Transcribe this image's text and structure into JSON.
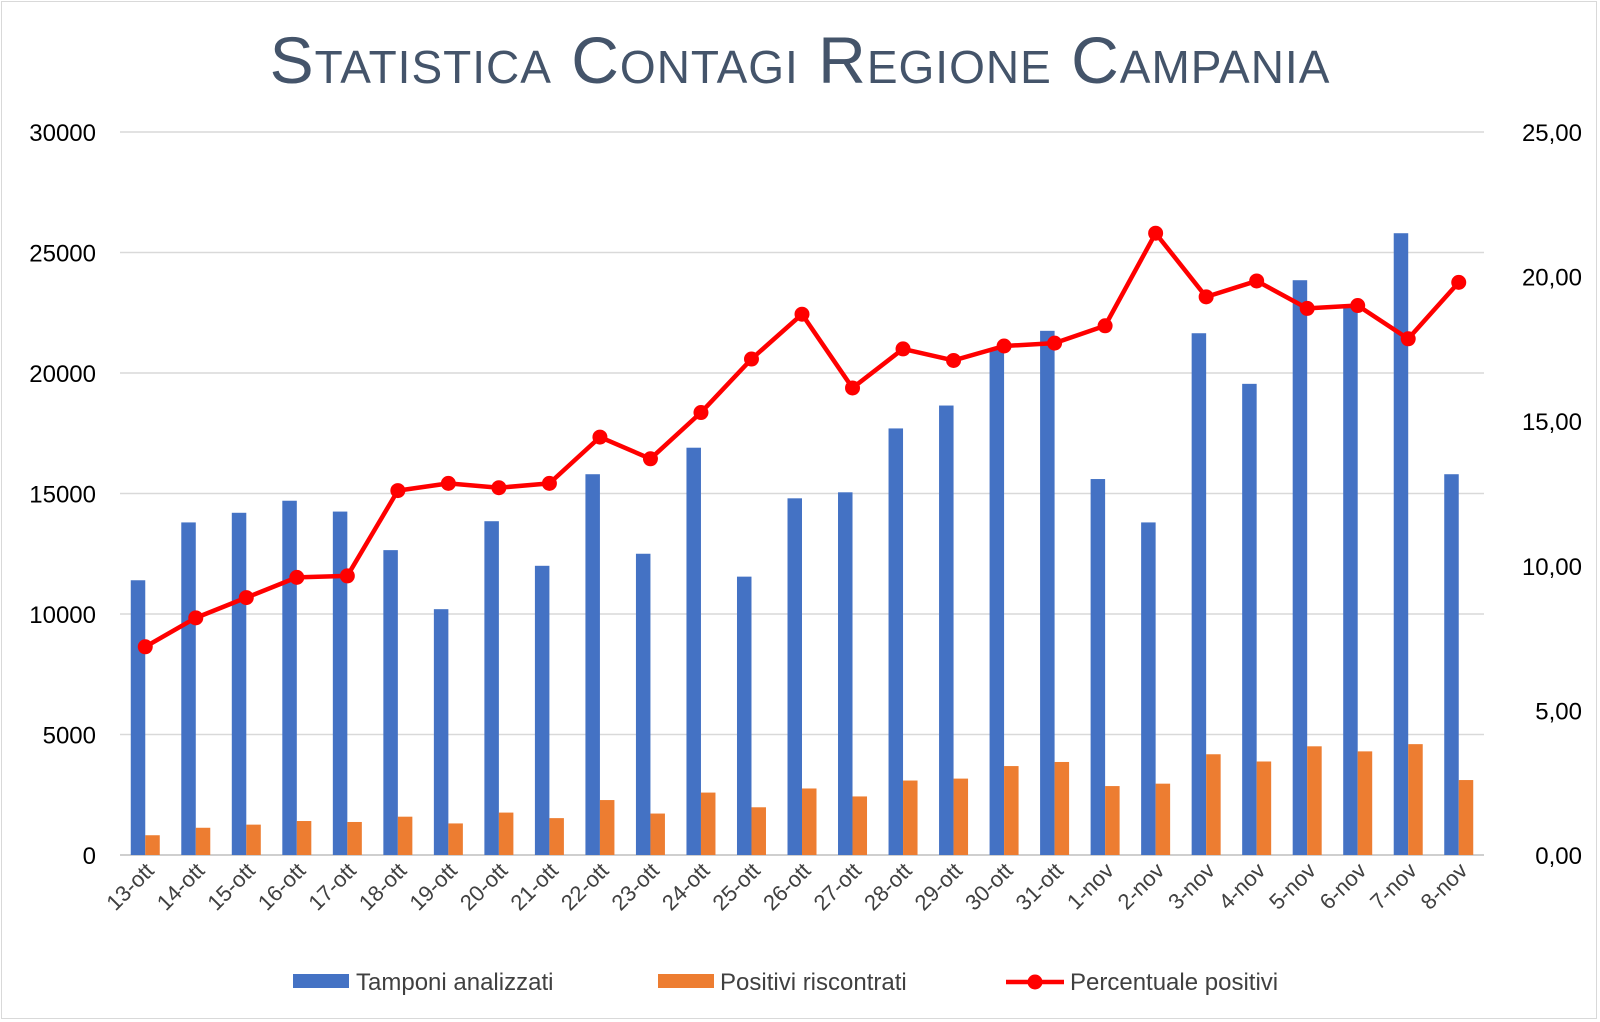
{
  "chart_data": {
    "type": "bar",
    "title": "Statistica Contagi Regione Campania",
    "categories": [
      "13-ott",
      "14-ott",
      "15-ott",
      "16-ott",
      "17-ott",
      "18-ott",
      "19-ott",
      "20-ott",
      "21-ott",
      "22-ott",
      "23-ott",
      "24-ott",
      "25-ott",
      "26-ott",
      "27-ott",
      "28-ott",
      "29-ott",
      "30-ott",
      "31-ott",
      "1-nov",
      "2-nov",
      "3-nov",
      "4-nov",
      "5-nov",
      "6-nov",
      "7-nov",
      "8-nov"
    ],
    "series": [
      {
        "name": "Tamponi analizzati",
        "type": "bar",
        "axis": "left",
        "color": "#4472c4",
        "values": [
          11400,
          13800,
          14200,
          14700,
          14250,
          12650,
          10200,
          13850,
          12000,
          15800,
          12500,
          16900,
          11550,
          14800,
          15050,
          17700,
          18650,
          21000,
          21750,
          15600,
          13800,
          21650,
          19550,
          23850,
          22700,
          25800,
          15800
        ]
      },
      {
        "name": "Positivi riscontrati",
        "type": "bar",
        "axis": "left",
        "color": "#ed7d31",
        "values": [
          820,
          1130,
          1260,
          1410,
          1370,
          1590,
          1310,
          1760,
          1530,
          2280,
          1720,
          2590,
          1980,
          2760,
          2430,
          3090,
          3170,
          3690,
          3860,
          2860,
          2960,
          4180,
          3880,
          4510,
          4300,
          4600,
          3110
        ]
      },
      {
        "name": "Percentuale positivi",
        "type": "line",
        "axis": "right",
        "color": "#ff0000",
        "values": [
          7.2,
          8.2,
          8.9,
          9.6,
          9.65,
          12.6,
          12.85,
          12.7,
          12.85,
          14.45,
          13.7,
          15.3,
          17.15,
          18.7,
          16.15,
          17.5,
          17.1,
          17.6,
          17.7,
          18.3,
          21.5,
          19.3,
          19.85,
          18.9,
          19.0,
          17.85,
          19.8
        ]
      }
    ],
    "y_left": {
      "ylim": [
        0,
        30000
      ],
      "ticks": [
        "0",
        "5000",
        "10000",
        "15000",
        "20000",
        "25000",
        "30000"
      ]
    },
    "y_right": {
      "ylim": [
        0,
        25
      ],
      "ticks": [
        "0,00",
        "5,00",
        "10,00",
        "15,00",
        "20,00",
        "25,00"
      ]
    },
    "grid": true,
    "legend": "bottom"
  }
}
